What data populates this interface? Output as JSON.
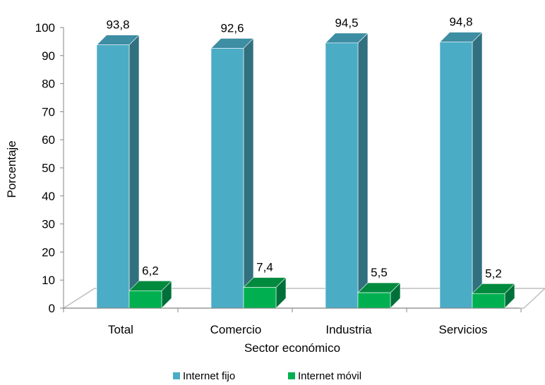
{
  "chart_data": {
    "type": "bar",
    "categories": [
      "Total",
      "Comercio",
      "Industria",
      "Servicios"
    ],
    "series": [
      {
        "name": "Internet fijo",
        "values": [
          93.8,
          92.6,
          94.5,
          94.8
        ],
        "labels": [
          "93,8",
          "92,6",
          "94,5",
          "94,8"
        ],
        "color": "#4BACC6",
        "side": "#31707E",
        "top": "#3D8DA3"
      },
      {
        "name": "Internet móvil",
        "values": [
          6.2,
          7.4,
          5.5,
          5.2
        ],
        "labels": [
          "6,2",
          "7,4",
          "5,5",
          "5,2"
        ],
        "color": "#00B050",
        "side": "#00703A",
        "top": "#008A3E"
      }
    ],
    "xlabel": "Sector económico",
    "ylabel": "Porcentaje",
    "ylim": [
      0,
      100
    ],
    "yticks": [
      "0",
      "10",
      "20",
      "30",
      "40",
      "50",
      "60",
      "70",
      "80",
      "90",
      "100"
    ],
    "grid": false,
    "legend_position": "bottom",
    "style": "3d-column"
  }
}
